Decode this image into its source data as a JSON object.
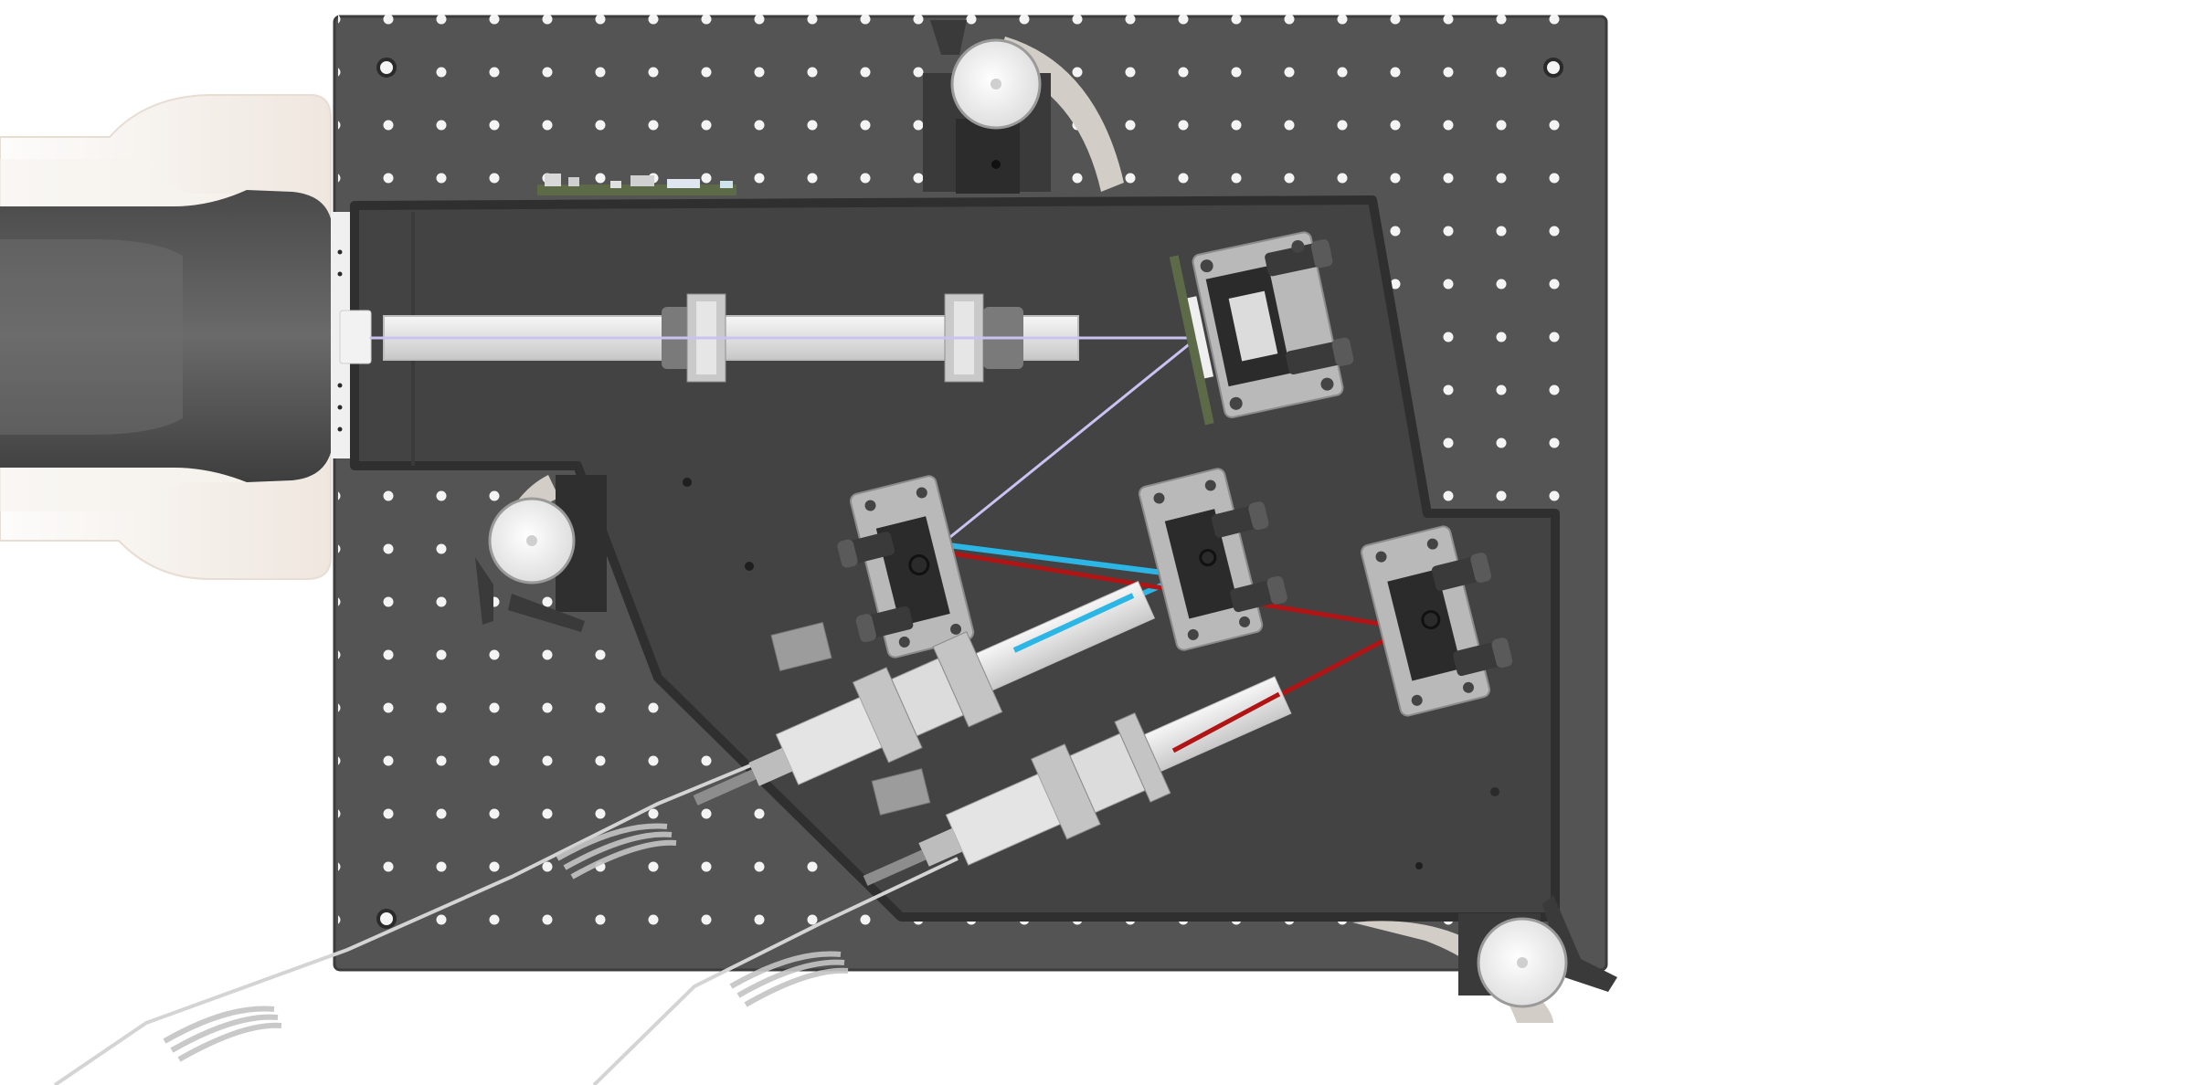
{
  "scene": {
    "colors": {
      "background": "#ffffff",
      "breadboard": "#545454",
      "breadboard_edge": "#3c3c3c",
      "hole": "#f4f4f4",
      "enclosure": "#434343",
      "enclosure_wall": "#2f2f2f",
      "rail": "#e6e6e6",
      "rail_shade": "#c9c9c9",
      "mount_plate": "#b9b9b9",
      "mount_body": "#2b2b2b",
      "knob": "#5a5a5a",
      "clamp_pad": "#ececec",
      "clamp_arm": "#d2cdc6",
      "lamp_housing": "#5a5a5a",
      "lamp_shell": "#f1ede9",
      "pcb": "#5c6a48",
      "fiber": "#d4d4d4",
      "beam_violet": "#c9c3f2",
      "beam_cyan": "#2cb6e6",
      "beam_red": "#b11414"
    },
    "components": [
      "optical-breadboard",
      "light-source-housing",
      "collimator-rail",
      "fold-mirror-mount",
      "dichroic-mount",
      "turning-mirror-mount",
      "fiber-coupler-cyan",
      "fiber-coupler-red",
      "fiber-cable",
      "clamp-knob",
      "circuit-board"
    ]
  }
}
